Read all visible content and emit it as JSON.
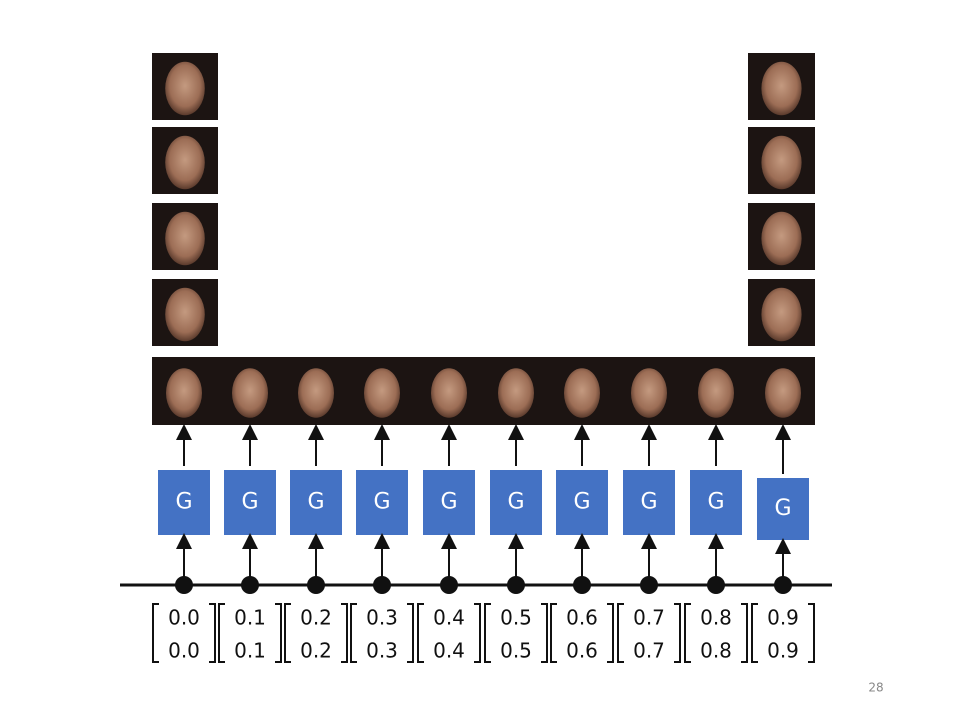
{
  "generators": [
    {
      "label": "G"
    },
    {
      "label": "G"
    },
    {
      "label": "G"
    },
    {
      "label": "G"
    },
    {
      "label": "G"
    },
    {
      "label": "G"
    },
    {
      "label": "G"
    },
    {
      "label": "G"
    },
    {
      "label": "G"
    },
    {
      "label": "G"
    }
  ],
  "vectors": [
    [
      "0.0",
      "0.0"
    ],
    [
      "0.1",
      "0.1"
    ],
    [
      "0.2",
      "0.2"
    ],
    [
      "0.3",
      "0.3"
    ],
    [
      "0.4",
      "0.4"
    ],
    [
      "0.5",
      "0.5"
    ],
    [
      "0.6",
      "0.6"
    ],
    [
      "0.7",
      "0.7"
    ],
    [
      "0.8",
      "0.8"
    ],
    [
      "0.9",
      "0.9"
    ]
  ],
  "page_number": "28"
}
